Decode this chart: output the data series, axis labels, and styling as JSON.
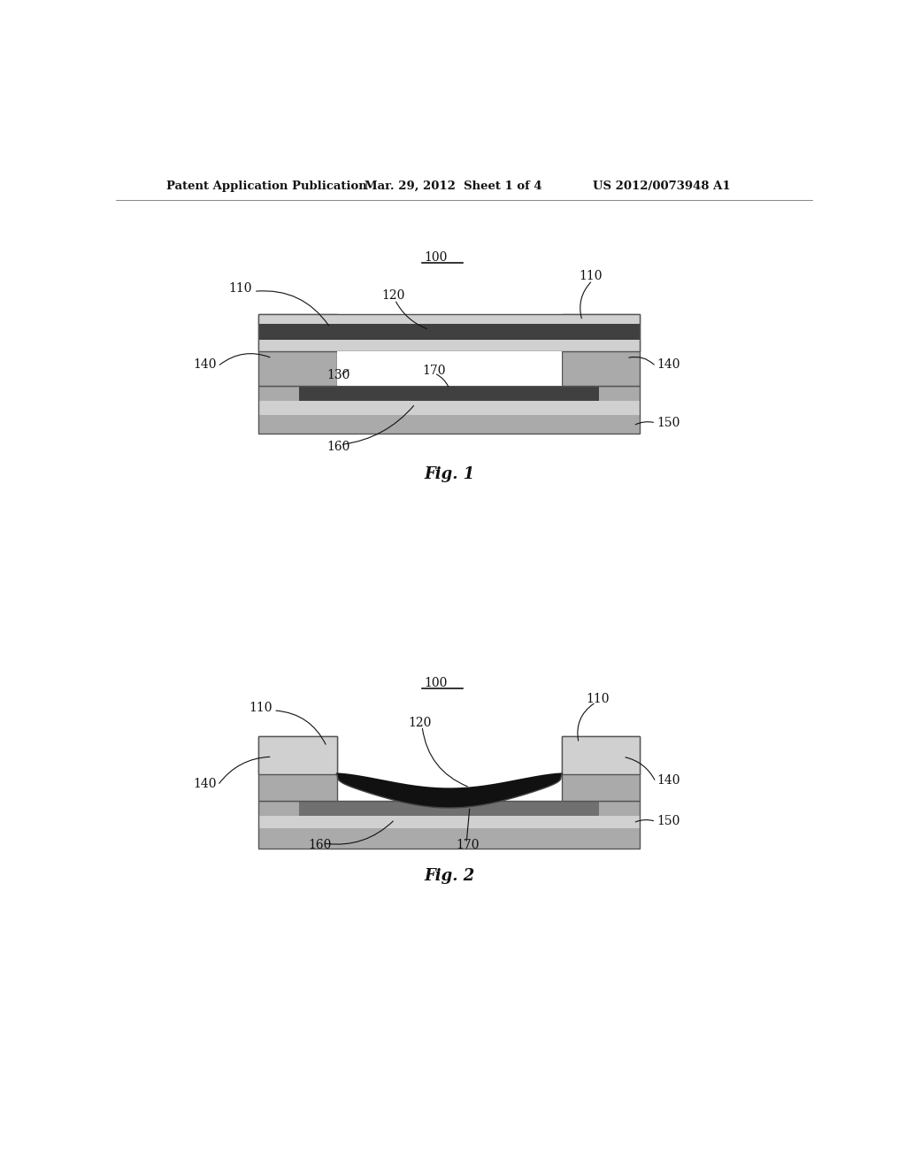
{
  "header_left": "Patent Application Publication",
  "header_mid": "Mar. 29, 2012  Sheet 1 of 4",
  "header_right": "US 2012/0073948 A1",
  "fig1_label": "Fig. 1",
  "fig2_label": "Fig. 2",
  "bg_color": "#ffffff",
  "gray_light": "#d0d0d0",
  "gray_mid": "#aaaaaa",
  "gray_dark": "#707070",
  "gray_very_dark": "#333333",
  "black": "#111111",
  "white": "#ffffff",
  "hatch_gray": "#b8b8b8",
  "electrode_dark": "#404040",
  "support_gray": "#999999"
}
